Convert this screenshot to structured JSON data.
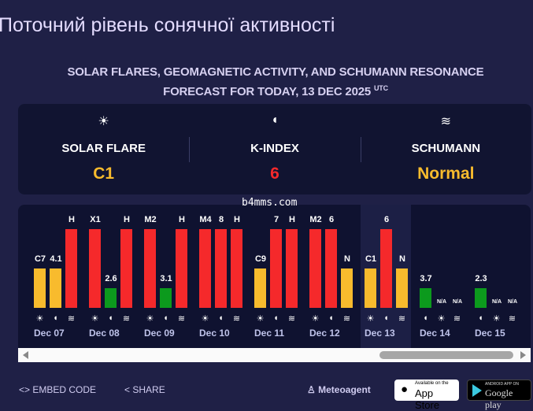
{
  "page": {
    "title": "Поточний рівень сонячної активності",
    "subtitle_line1": "SOLAR FLARES, GEOMAGNETIC ACTIVITY, AND SCHUMANN RESONANCE",
    "subtitle_line2": "FORECAST FOR TODAY, 13 DEC 2025",
    "subtitle_sup": "UTC",
    "watermark": "b4mms.com"
  },
  "colors": {
    "high": "#f5292b",
    "medium": "#f8bb2d",
    "low": "#0c9a1d",
    "background": "#1f2046"
  },
  "summary": [
    {
      "icon": "sun-icon",
      "label": "SOLAR FLARE",
      "value": "C1",
      "color": "#f8bb2d"
    },
    {
      "icon": "magnet-icon",
      "label": "K-INDEX",
      "value": "6",
      "color": "#f5292b"
    },
    {
      "icon": "waves-icon",
      "label": "SCHUMANN",
      "value": "Normal",
      "color": "#f8bb2d"
    }
  ],
  "days": [
    {
      "date": "",
      "bars": [
        {
          "type": "schumann",
          "label": "H",
          "level": "high"
        }
      ]
    },
    {
      "date": "Dec 07",
      "bars": [
        {
          "type": "sun",
          "label": "C7",
          "level": "medium"
        },
        {
          "type": "kindex",
          "label": "4.1",
          "level": "medium"
        },
        {
          "type": "schumann",
          "label": "H",
          "level": "high"
        }
      ]
    },
    {
      "date": "Dec 08",
      "bars": [
        {
          "type": "sun",
          "label": "X1",
          "level": "high"
        },
        {
          "type": "kindex",
          "label": "2.6",
          "level": "low"
        },
        {
          "type": "schumann",
          "label": "H",
          "level": "high"
        }
      ]
    },
    {
      "date": "Dec 09",
      "bars": [
        {
          "type": "sun",
          "label": "M2",
          "level": "high"
        },
        {
          "type": "kindex",
          "label": "3.1",
          "level": "low"
        },
        {
          "type": "schumann",
          "label": "H",
          "level": "high"
        }
      ]
    },
    {
      "date": "Dec 10",
      "bars": [
        {
          "type": "sun",
          "label": "M4",
          "level": "high"
        },
        {
          "type": "kindex",
          "label": "8",
          "level": "high"
        },
        {
          "type": "schumann",
          "label": "H",
          "level": "high"
        }
      ]
    },
    {
      "date": "Dec 11",
      "bars": [
        {
          "type": "sun",
          "label": "C9",
          "level": "medium"
        },
        {
          "type": "kindex",
          "label": "7",
          "level": "high"
        },
        {
          "type": "schumann",
          "label": "H",
          "level": "high"
        }
      ]
    },
    {
      "date": "Dec 12",
      "bars": [
        {
          "type": "sun",
          "label": "M2",
          "level": "high"
        },
        {
          "type": "kindex",
          "label": "6",
          "level": "high"
        },
        {
          "type": "schumann",
          "label": "N",
          "level": "medium"
        }
      ]
    },
    {
      "date": "Dec 13",
      "today": true,
      "bars": [
        {
          "type": "sun",
          "label": "C1",
          "level": "medium"
        },
        {
          "type": "kindex",
          "label": "6",
          "level": "high"
        },
        {
          "type": "schumann",
          "label": "N",
          "level": "medium"
        }
      ]
    },
    {
      "date": "Dec 14",
      "bars": [
        {
          "type": "kindex",
          "label": "3.7",
          "level": "low"
        },
        {
          "type": "sun",
          "label": "N/A",
          "level": "none"
        },
        {
          "type": "schumann",
          "label": "N/A",
          "level": "none"
        }
      ]
    },
    {
      "date": "Dec 15",
      "bars": [
        {
          "type": "kindex",
          "label": "2.3",
          "level": "low"
        },
        {
          "type": "sun",
          "label": "N/A",
          "level": "none"
        },
        {
          "type": "schumann",
          "label": "N/A",
          "level": "none"
        }
      ]
    }
  ],
  "footer": {
    "embed": "EMBED CODE",
    "share": "SHARE",
    "meteoagent": "Meteoagent",
    "appstore_small": "Available on the",
    "appstore": "App Store",
    "googleplay_small": "ANDROID APP ON",
    "googleplay": "Google play"
  }
}
